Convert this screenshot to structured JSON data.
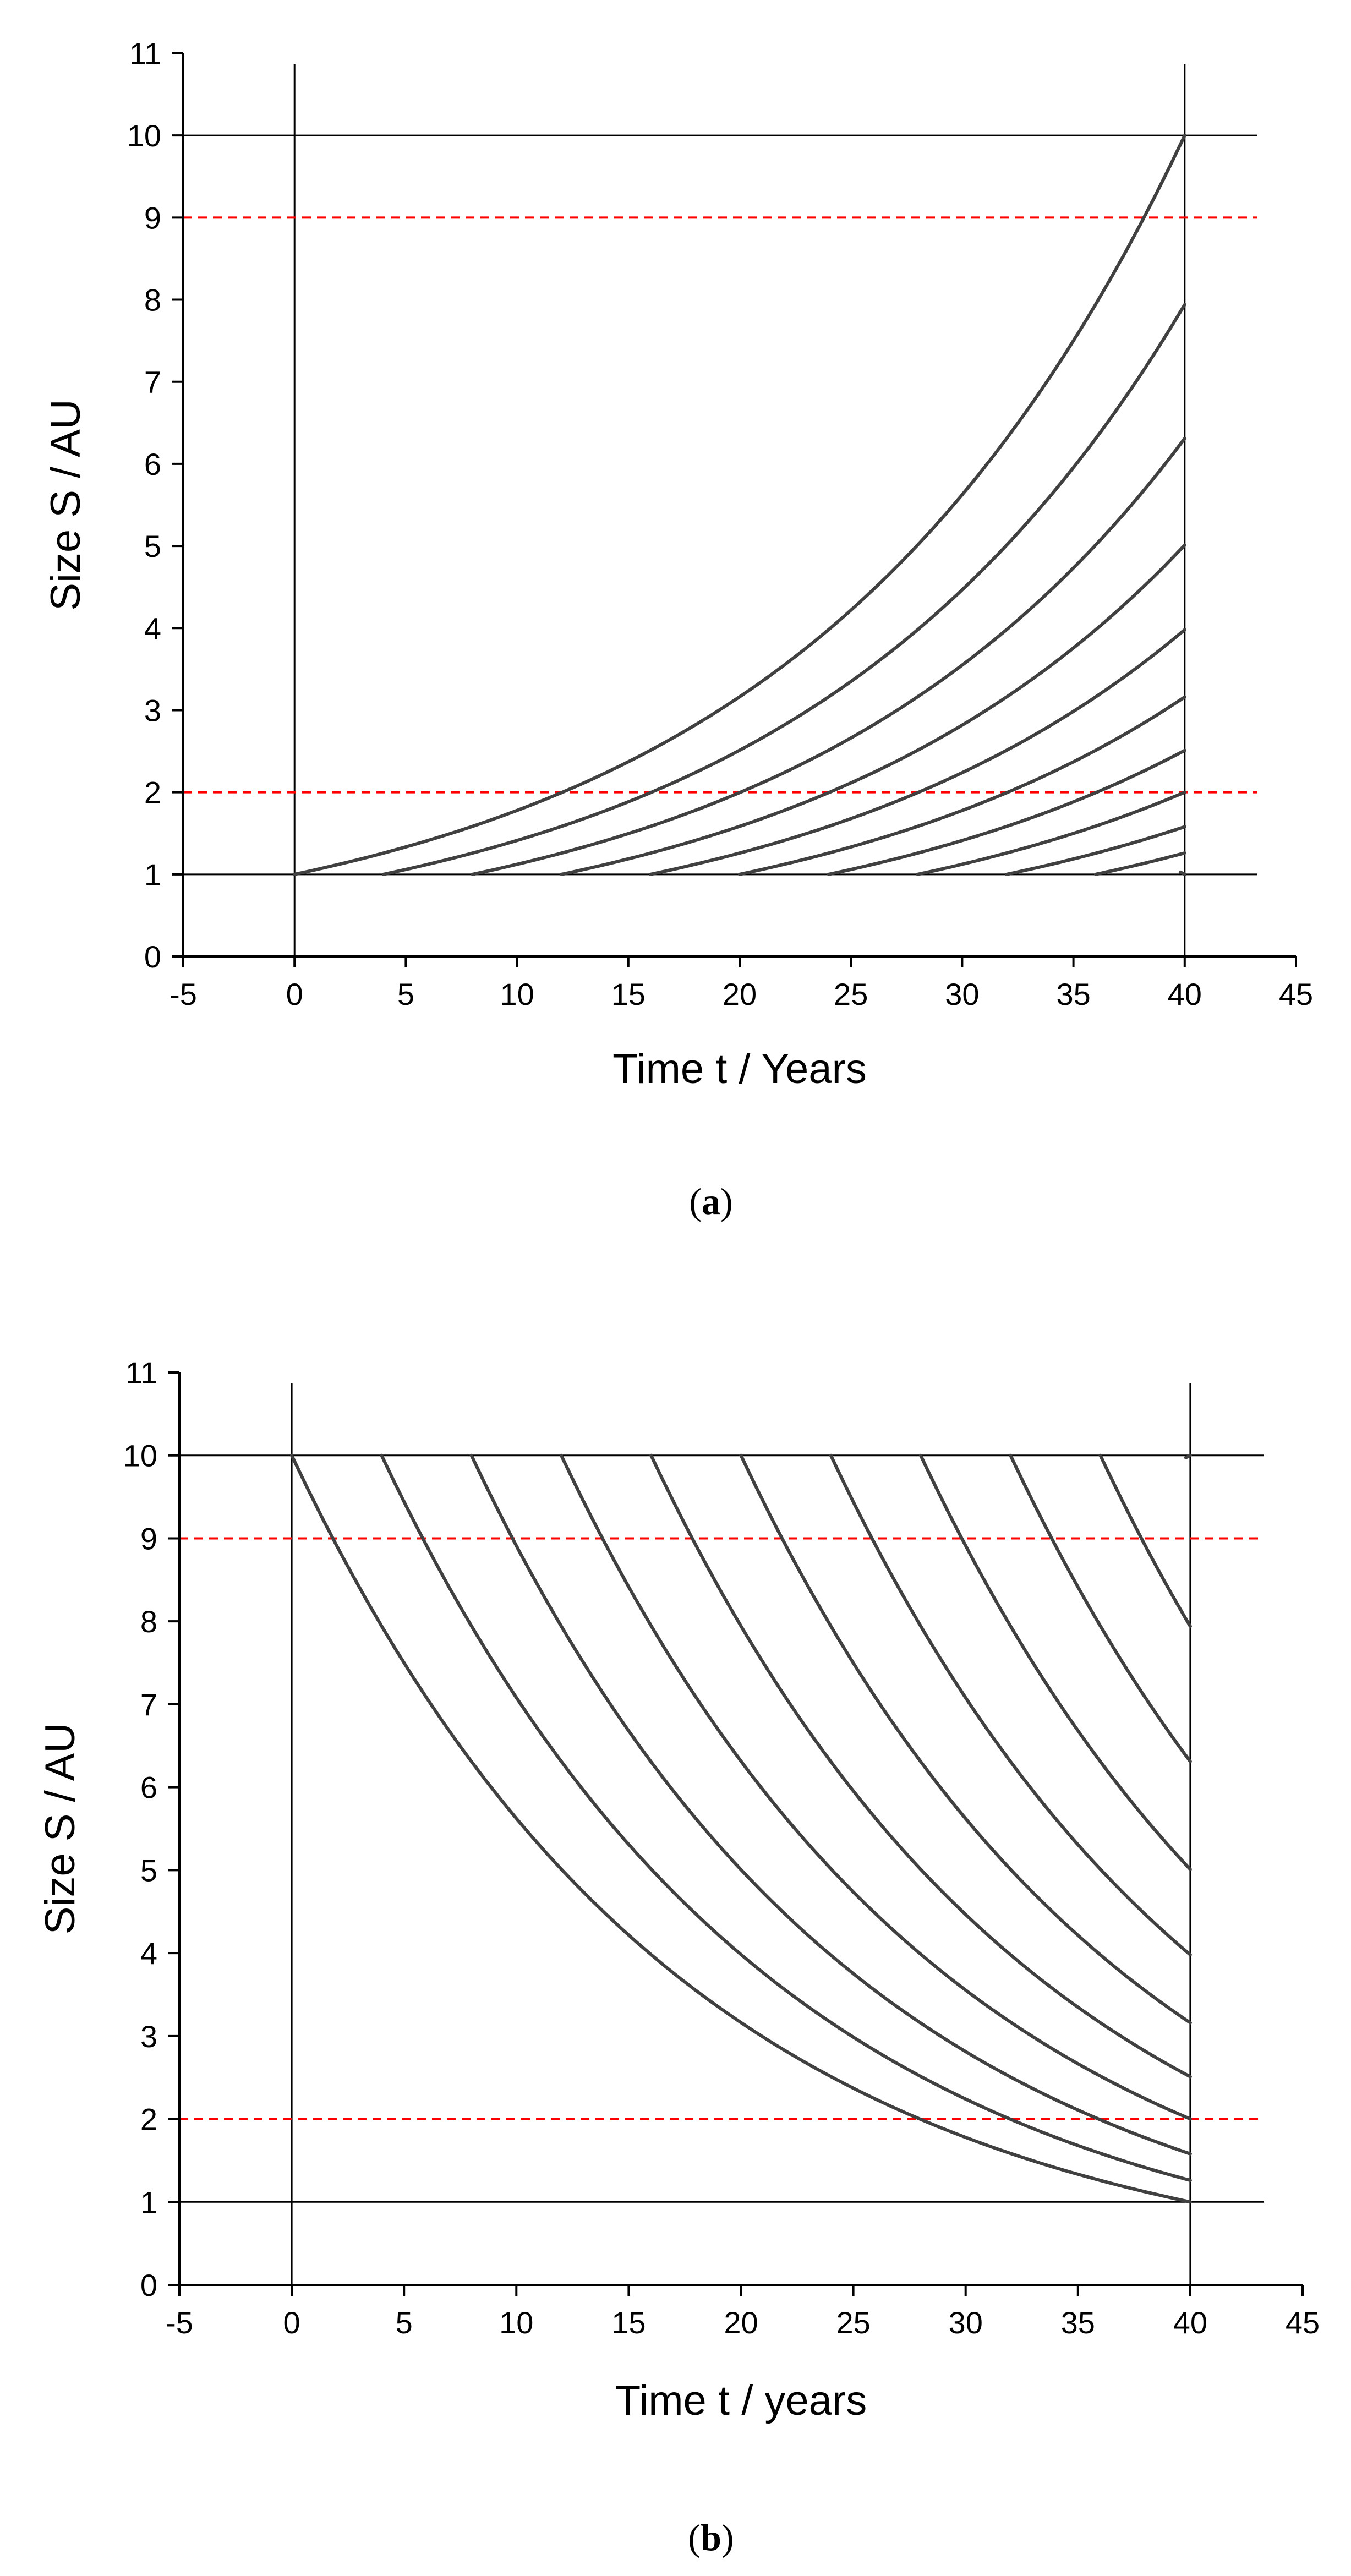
{
  "chart_data": [
    {
      "type": "line",
      "panel": "a",
      "caption_letter": "a",
      "xlabel": "Time t / Years",
      "ylabel": "Size S / AU",
      "xlim": [
        -5,
        45
      ],
      "ylim": [
        0,
        11
      ],
      "x_ticks": [
        -5,
        0,
        5,
        10,
        15,
        20,
        25,
        30,
        35,
        40,
        45
      ],
      "y_ticks": [
        0,
        1,
        2,
        3,
        4,
        5,
        6,
        7,
        8,
        9,
        10,
        11
      ],
      "x_tick_labels": [
        "-5",
        "0",
        "5",
        "10",
        "15",
        "20",
        "25",
        "30",
        "35",
        "40",
        "45"
      ],
      "y_tick_labels": [
        "0",
        "1",
        "2",
        "3",
        "4",
        "5",
        "6",
        "7",
        "8",
        "9",
        "10",
        "11"
      ],
      "reference_lines": {
        "horizontal_solid": [
          1,
          10
        ],
        "vertical_solid": [
          0,
          40
        ],
        "horizontal_dashed": [
          2,
          9
        ]
      },
      "line_color": "#404040",
      "dashed_color": "#ff0000",
      "growth": "exponential growth from S=1, size doubles every 12.04 years",
      "series_start_times": [
        0,
        4,
        8,
        12,
        16,
        20,
        24,
        28,
        32,
        36,
        40
      ],
      "series_start_size": 1,
      "series_end_time": 40,
      "series_end_sizes": [
        10.0,
        7.94,
        6.31,
        5.01,
        3.98,
        3.16,
        2.51,
        2.0,
        1.58,
        1.26,
        1.0
      ]
    },
    {
      "type": "line",
      "panel": "b",
      "caption_letter": "b",
      "xlabel": "Time t / years",
      "ylabel": "Size S / AU",
      "xlim": [
        -5,
        45
      ],
      "ylim": [
        0,
        11
      ],
      "x_ticks": [
        -5,
        0,
        5,
        10,
        15,
        20,
        25,
        30,
        35,
        40,
        45
      ],
      "y_ticks": [
        0,
        1,
        2,
        3,
        4,
        5,
        6,
        7,
        8,
        9,
        10,
        11
      ],
      "x_tick_labels": [
        "-5",
        "0",
        "5",
        "10",
        "15",
        "20",
        "25",
        "30",
        "35",
        "40",
        "45"
      ],
      "y_tick_labels": [
        "0",
        "1",
        "2",
        "3",
        "4",
        "5",
        "6",
        "7",
        "8",
        "9",
        "10",
        "11"
      ],
      "reference_lines": {
        "horizontal_solid": [
          1,
          10
        ],
        "vertical_solid": [
          0,
          40
        ],
        "horizontal_dashed": [
          2,
          9
        ]
      },
      "line_color": "#404040",
      "dashed_color": "#ff0000",
      "growth": "exponential decay from S=10, size halves every 12.04 years",
      "series_start_times": [
        0,
        4,
        8,
        12,
        16,
        20,
        24,
        28,
        32,
        36,
        40
      ],
      "series_start_size": 10,
      "series_end_time": 40,
      "series_end_sizes": [
        1.0,
        1.26,
        1.58,
        2.0,
        2.51,
        3.16,
        3.98,
        5.01,
        6.31,
        7.94,
        10.0
      ]
    }
  ]
}
